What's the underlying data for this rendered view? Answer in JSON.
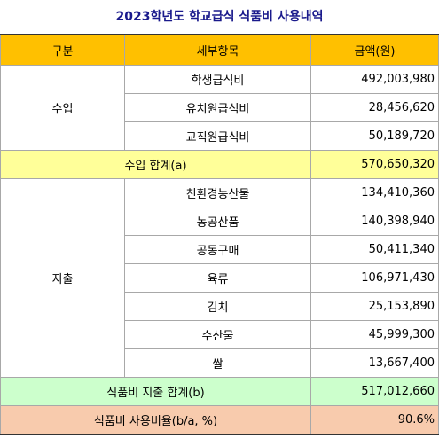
{
  "title": "2023학년도 학교급식 식품비 사용내역",
  "header": {
    "category": "구분",
    "item": "세부항목",
    "amount": "금액(원)"
  },
  "income": {
    "label": "수입",
    "items": [
      {
        "name": "학생급식비",
        "amount": "492,003,980"
      },
      {
        "name": "유치원급식비",
        "amount": "28,456,620"
      },
      {
        "name": "교직원급식비",
        "amount": "50,189,720"
      }
    ],
    "total_label": "수입 합계(a)",
    "total_amount": "570,650,320"
  },
  "expense": {
    "label": "지출",
    "items": [
      {
        "name": "친환경농산물",
        "amount": "134,410,360"
      },
      {
        "name": "농공산품",
        "amount": "140,398,940"
      },
      {
        "name": "공동구매",
        "amount": "50,411,340"
      },
      {
        "name": "육류",
        "amount": "106,971,430"
      },
      {
        "name": "김치",
        "amount": "25,153,890"
      },
      {
        "name": "수산물",
        "amount": "45,999,300"
      },
      {
        "name": "쌀",
        "amount": "13,667,400"
      }
    ],
    "total_label": "식품비 지출 합계(b)",
    "total_amount": "517,012,660"
  },
  "ratio": {
    "label": "식품비 사용비율(b/a, %)",
    "value": "90.6%"
  }
}
